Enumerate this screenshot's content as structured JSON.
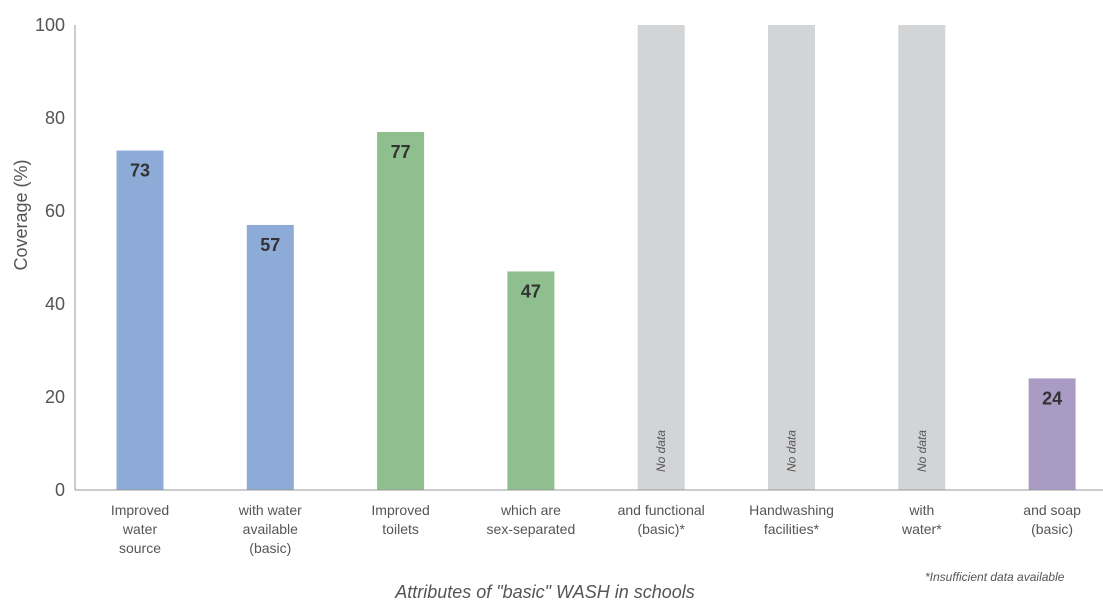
{
  "chart_data": {
    "type": "bar",
    "title": "",
    "xlabel": "Attributes of \"basic\" WASH in schools",
    "ylabel": "Coverage (%)",
    "ylim": [
      0,
      100
    ],
    "yticks": [
      0,
      20,
      40,
      60,
      80,
      100
    ],
    "grid": false,
    "legend": "none",
    "categories": [
      [
        "Improved",
        "water",
        "source"
      ],
      [
        "with water",
        "available",
        "(basic)"
      ],
      [
        "Improved",
        "toilets"
      ],
      [
        "which are",
        "sex-separated"
      ],
      [
        "and functional",
        "(basic)*"
      ],
      [
        "Handwashing",
        "facilities*"
      ],
      [
        "with",
        "water*"
      ],
      [
        "and soap",
        "(basic)"
      ]
    ],
    "values": [
      73,
      57,
      77,
      47,
      null,
      null,
      null,
      24
    ],
    "value_labels": [
      "73",
      "57",
      "77",
      "47",
      "",
      "",
      "",
      "24"
    ],
    "no_data_label": "No data",
    "bar_colors": [
      "#8eabd8",
      "#8eabd8",
      "#8fbf8f",
      "#8fbf8f",
      "#d3d4d6",
      "#d3d4d6",
      "#d3d4d6",
      "#a99bc4"
    ],
    "footnote": "*Insufficient data available",
    "axis_color": "#999999"
  }
}
